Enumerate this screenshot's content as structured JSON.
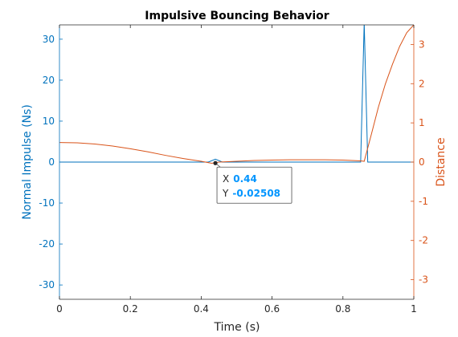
{
  "chart_data": {
    "type": "line",
    "title": "Impulsive Bouncing Behavior",
    "xlabel": "Time (s)",
    "ylabel_left": "Normal Impulse (Ns)",
    "ylabel_right": "Distance",
    "xlim": [
      0,
      1
    ],
    "ylim_left": [
      -33.5,
      33.5
    ],
    "ylim_right": [
      -3.5,
      3.5
    ],
    "x_ticks": [
      0,
      0.2,
      0.4,
      0.6,
      0.8,
      1
    ],
    "x_tick_labels": [
      "0",
      "0.2",
      "0.4",
      "0.6",
      "0.8",
      "1"
    ],
    "y_left_ticks": [
      -30,
      -20,
      -10,
      0,
      10,
      20,
      30
    ],
    "y_left_tick_labels": [
      "-30",
      "-20",
      "-10",
      "0",
      "10",
      "20",
      "30"
    ],
    "y_right_ticks": [
      -3,
      -2,
      -1,
      0,
      1,
      2,
      3
    ],
    "y_right_tick_labels": [
      "-3",
      "-2",
      "-1",
      "0",
      "1",
      "2",
      "3"
    ],
    "colors": {
      "left": "#0072BD",
      "right": "#D95319",
      "axis": "#262626",
      "tip_value": "#0095FF"
    },
    "series": [
      {
        "axis": "left",
        "x": [
          0,
          0.42,
          0.44,
          0.46,
          0.85,
          0.86,
          0.87,
          1
        ],
        "y": [
          0,
          0,
          0.7,
          0,
          0,
          34,
          0,
          0
        ]
      },
      {
        "axis": "right",
        "x": [
          0,
          0.05,
          0.1,
          0.15,
          0.2,
          0.25,
          0.3,
          0.35,
          0.4,
          0.43,
          0.45,
          0.5,
          0.55,
          0.6,
          0.65,
          0.7,
          0.75,
          0.8,
          0.85,
          0.86,
          0.88,
          0.9,
          0.92,
          0.94,
          0.96,
          0.98,
          1
        ],
        "y": [
          0.5,
          0.49,
          0.46,
          0.41,
          0.34,
          0.26,
          0.17,
          0.09,
          0.02,
          -0.03,
          0.0,
          0.02,
          0.04,
          0.05,
          0.06,
          0.06,
          0.06,
          0.05,
          0.03,
          0.02,
          0.7,
          1.4,
          2.0,
          2.5,
          2.95,
          3.3,
          3.5
        ]
      }
    ],
    "datatip": {
      "x": 0.44,
      "y": -0.02508,
      "x_label": "X",
      "y_label": "Y",
      "x_text": "0.44",
      "y_text": "-0.02508"
    }
  }
}
